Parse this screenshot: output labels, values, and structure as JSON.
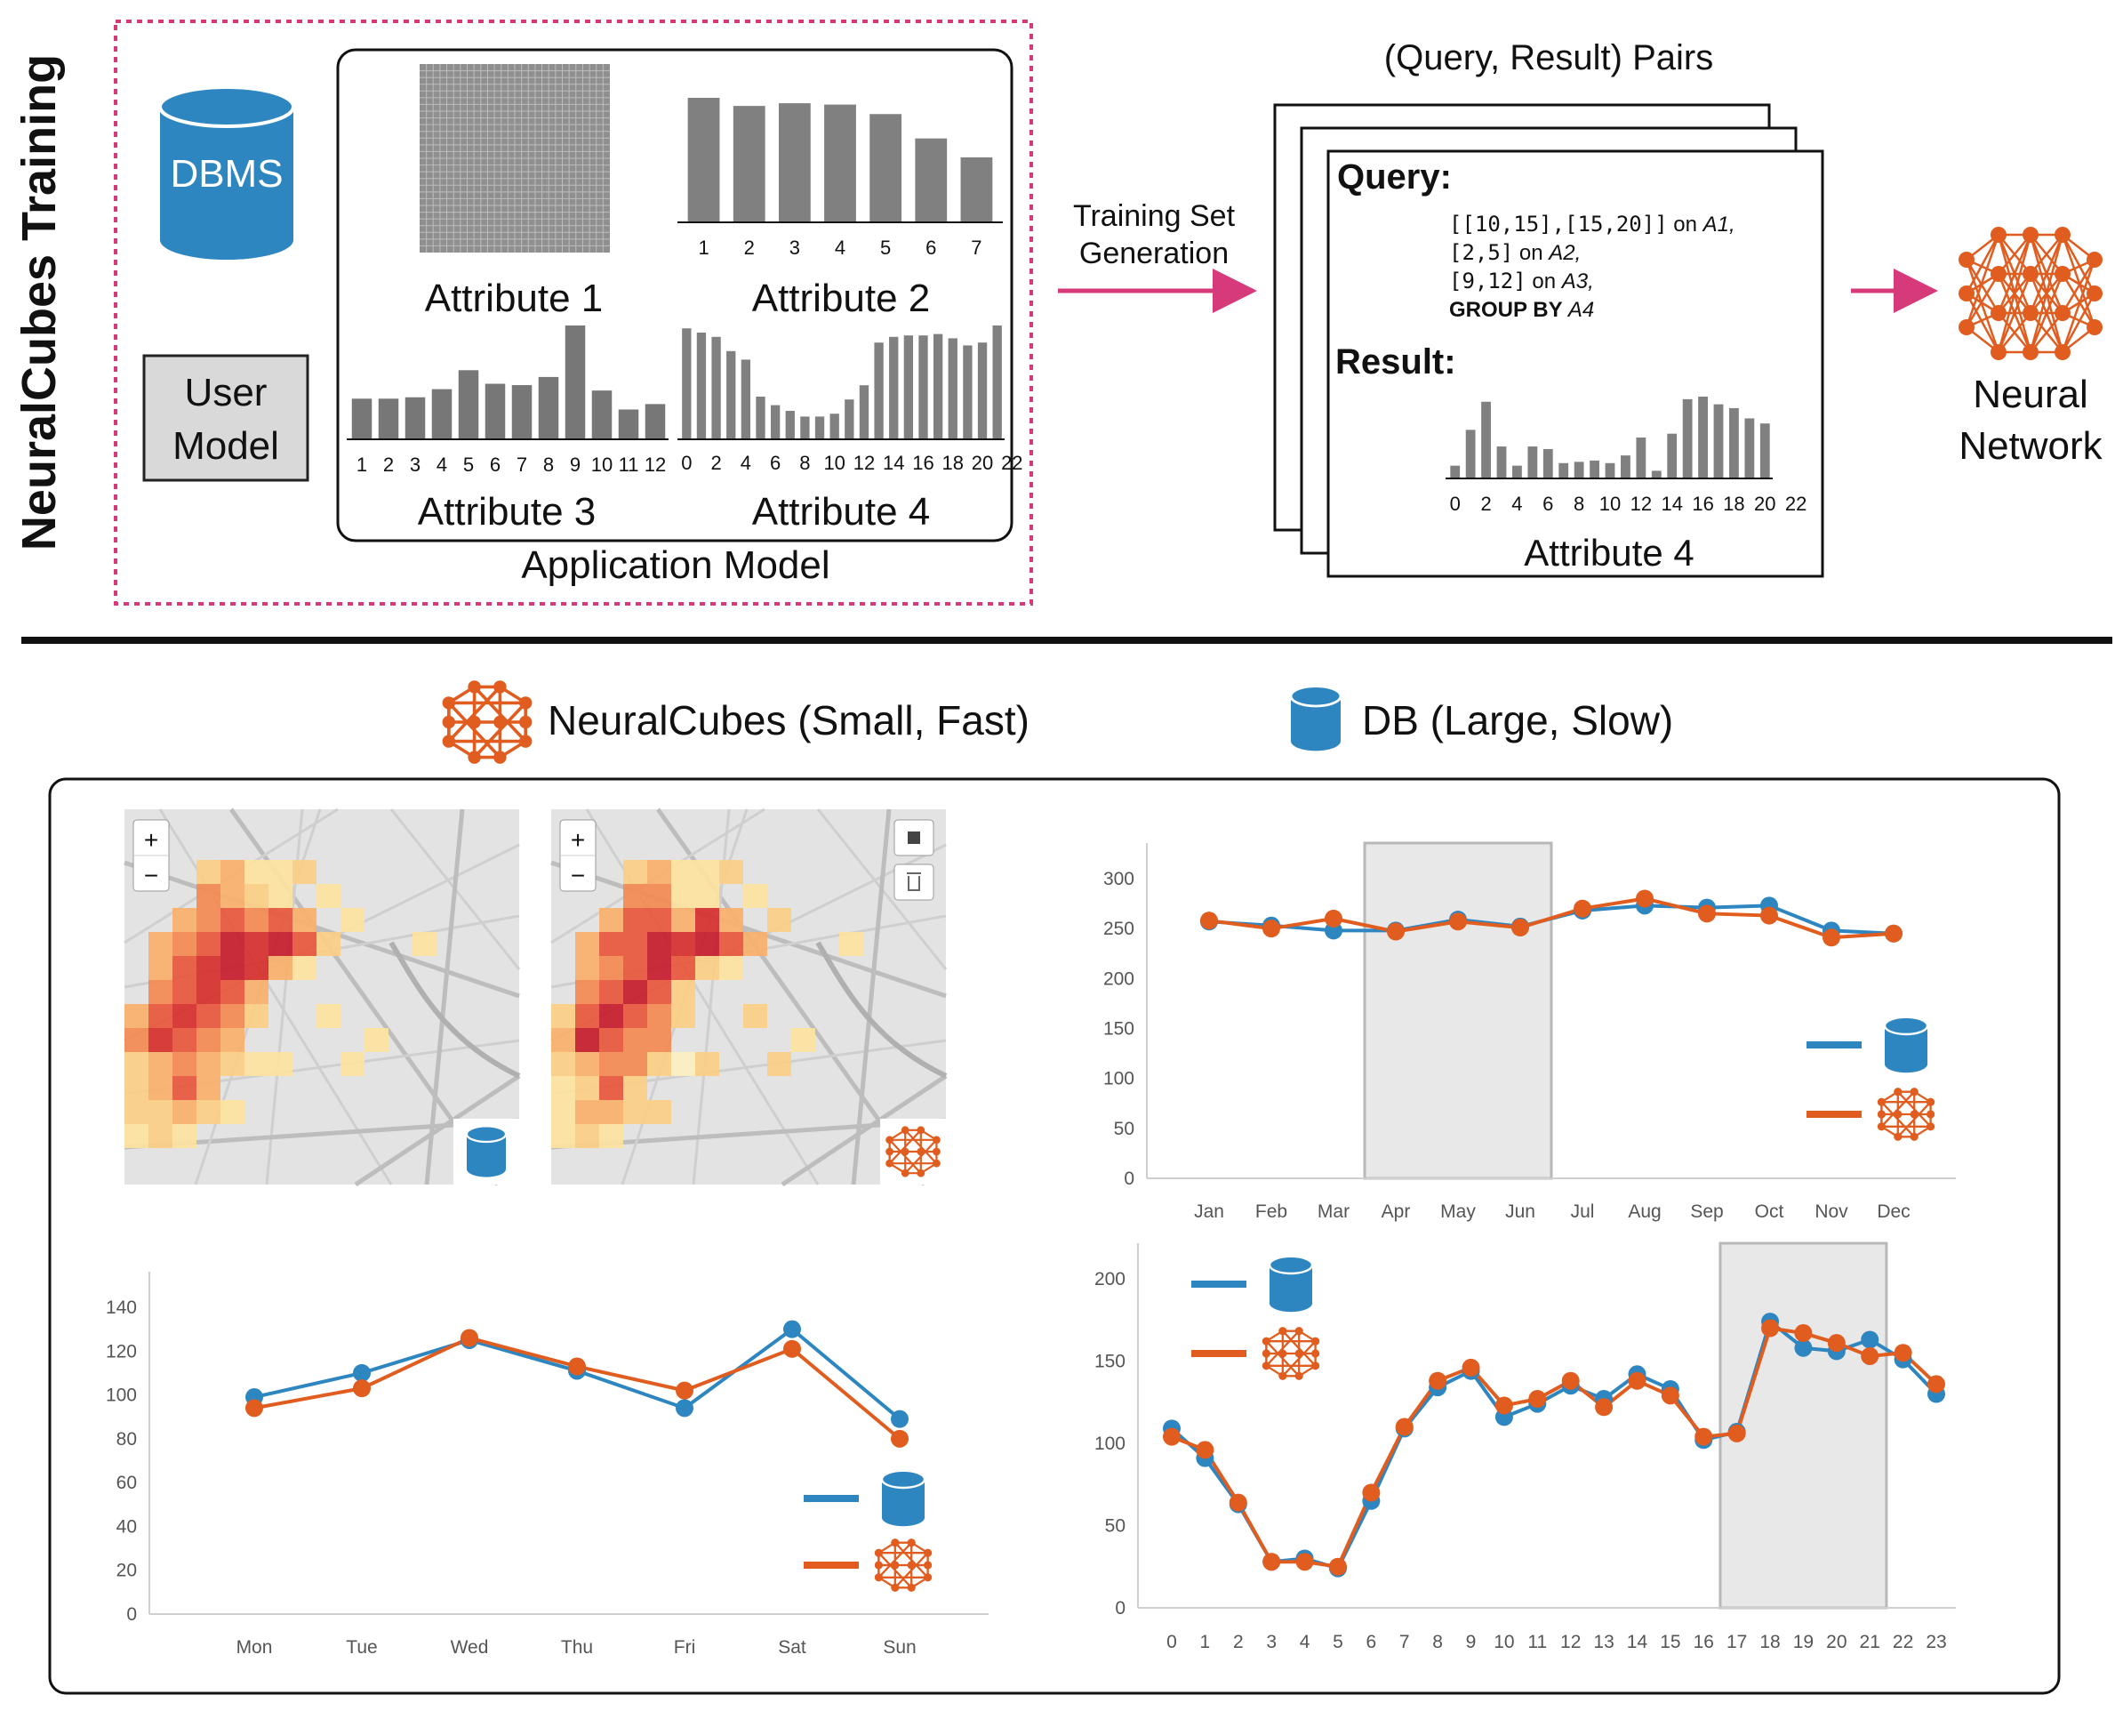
{
  "training": {
    "side_title": "NeuralCubes Training",
    "dbms_label": "DBMS",
    "user_model_line1": "User",
    "user_model_line2": "Model",
    "application_model_label": "Application Model",
    "arrow1_line1": "Training Set",
    "arrow1_line2": "Generation",
    "pairs_title": "(Query, Result) Pairs",
    "query_label": "Query:",
    "query_lines": [
      {
        "code": "[[10,15],[15,20]]",
        "text": " on ",
        "attr": "A1,"
      },
      {
        "code": "[2,5]",
        "text": " on ",
        "attr": "A2,"
      },
      {
        "code": "[9,12]",
        "text": " on ",
        "attr": "A3,"
      }
    ],
    "query_groupby": "GROUP BY",
    "query_groupby_attr": "A4",
    "result_label": "Result:",
    "result_attr_label": "Attribute 4",
    "nn_line1": "Neural",
    "nn_line2": "Network",
    "attr1": {
      "label": "Attribute 1"
    },
    "attr2": {
      "label": "Attribute 2",
      "ticks": [
        "1",
        "2",
        "3",
        "4",
        "5",
        "6",
        "7"
      ],
      "values": [
        92,
        86,
        88,
        87,
        80,
        62,
        48
      ]
    },
    "attr3": {
      "label": "Attribute 3",
      "ticks": [
        "1",
        "2",
        "3",
        "4",
        "5",
        "6",
        "7",
        "8",
        "9",
        "10",
        "11",
        "12"
      ],
      "values": [
        30,
        30,
        31,
        37,
        51,
        41,
        40,
        46,
        84,
        36,
        22,
        26
      ]
    },
    "attr4": {
      "label": "Attribute 4",
      "ticks": [
        "0",
        "2",
        "4",
        "6",
        "8",
        "10",
        "12",
        "14",
        "16",
        "18",
        "20",
        "22"
      ],
      "values": [
        78,
        75,
        72,
        62,
        56,
        30,
        24,
        20,
        16,
        16,
        18,
        28,
        38,
        68,
        72,
        73,
        73,
        74,
        71,
        66,
        68,
        80
      ]
    },
    "result": {
      "ticks": [
        "0",
        "2",
        "4",
        "6",
        "8",
        "10",
        "12",
        "14",
        "16",
        "18",
        "20",
        "22"
      ],
      "values": [
        10,
        38,
        60,
        25,
        10,
        25,
        23,
        12,
        13,
        14,
        12,
        18,
        32,
        6,
        35,
        62,
        64,
        58,
        55,
        47,
        43
      ]
    }
  },
  "legend": {
    "neuralcubes": "NeuralCubes (Small, Fast)",
    "db": "DB (Large, Slow)"
  },
  "colors": {
    "db": "#2e86c1",
    "nc": "#e05c1f",
    "bar": "#808080",
    "pink": "#d63a7a",
    "brush": "#e8e8e8"
  },
  "maps": {
    "left": {
      "corner_icon": "database-icon",
      "controls": [
        "+",
        "−"
      ]
    },
    "right": {
      "corner_icon": "neural-network-icon",
      "controls": [
        "+",
        "−",
        "■",
        "🗑"
      ]
    }
  },
  "chart_data": [
    {
      "type": "line",
      "categories": [
        "Jan",
        "Feb",
        "Mar",
        "Apr",
        "May",
        "Jun",
        "Jul",
        "Aug",
        "Sep",
        "Oct",
        "Nov",
        "Dec"
      ],
      "ylim": [
        0,
        300
      ],
      "yticks": [
        0,
        50,
        100,
        150,
        200,
        250,
        300
      ],
      "series": [
        {
          "icon": "database-icon",
          "color": "#2e86c1",
          "values": [
            257,
            253,
            248,
            248,
            259,
            252,
            268,
            273,
            271,
            273,
            248,
            245
          ]
        },
        {
          "icon": "neural-network-icon",
          "color": "#e05c1f",
          "values": [
            258,
            250,
            260,
            247,
            257,
            251,
            270,
            280,
            265,
            263,
            241,
            245
          ]
        }
      ],
      "brush": [
        "Apr",
        "Jun"
      ],
      "grid": false,
      "legend": "right"
    },
    {
      "type": "line",
      "categories": [
        "Mon",
        "Tue",
        "Wed",
        "Thu",
        "Fri",
        "Sat",
        "Sun"
      ],
      "ylim": [
        0,
        140
      ],
      "yticks": [
        0,
        20,
        40,
        60,
        80,
        100,
        120,
        140
      ],
      "series": [
        {
          "icon": "database-icon",
          "color": "#2e86c1",
          "values": [
            99,
            110,
            125,
            111,
            94,
            130,
            89
          ]
        },
        {
          "icon": "neural-network-icon",
          "color": "#e05c1f",
          "values": [
            94,
            103,
            126,
            113,
            102,
            121,
            80
          ]
        }
      ],
      "grid": false,
      "legend": "bottom-right"
    },
    {
      "type": "line",
      "categories": [
        "0",
        "1",
        "2",
        "3",
        "4",
        "5",
        "6",
        "7",
        "8",
        "9",
        "10",
        "11",
        "12",
        "13",
        "14",
        "15",
        "16",
        "17",
        "18",
        "19",
        "20",
        "21",
        "22",
        "23"
      ],
      "ylim": [
        0,
        200
      ],
      "yticks": [
        0,
        50,
        100,
        150,
        200
      ],
      "series": [
        {
          "icon": "database-icon",
          "color": "#2e86c1",
          "values": [
            109,
            91,
            63,
            28,
            30,
            24,
            65,
            109,
            134,
            144,
            116,
            124,
            135,
            127,
            142,
            133,
            102,
            107,
            174,
            158,
            156,
            163,
            151,
            130
          ]
        },
        {
          "icon": "neural-network-icon",
          "color": "#e05c1f",
          "values": [
            104,
            96,
            64,
            28,
            28,
            25,
            70,
            110,
            138,
            146,
            123,
            127,
            138,
            122,
            138,
            129,
            104,
            106,
            170,
            167,
            161,
            153,
            155,
            136
          ]
        }
      ],
      "brush": [
        "17",
        "21"
      ],
      "grid": false,
      "legend": "top-left"
    }
  ]
}
